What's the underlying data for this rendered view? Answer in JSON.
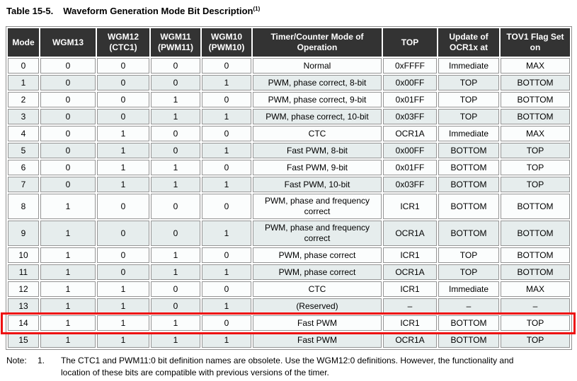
{
  "title": {
    "label": "Table 15-5.",
    "text": "Waveform Generation Mode Bit Description",
    "footnote_ref": "(1)"
  },
  "table": {
    "columns": [
      "Mode",
      "WGM13",
      "WGM12 (CTC1)",
      "WGM11 (PWM11)",
      "WGM10 (PWM10)",
      "Timer/Counter Mode of Operation",
      "TOP",
      "Update of OCR1x at",
      "TOV1 Flag Set on"
    ],
    "rows": [
      {
        "cells": [
          "0",
          "0",
          "0",
          "0",
          "0",
          "Normal",
          "0xFFFF",
          "Immediate",
          "MAX"
        ]
      },
      {
        "cells": [
          "1",
          "0",
          "0",
          "0",
          "1",
          "PWM, phase correct, 8-bit",
          "0x00FF",
          "TOP",
          "BOTTOM"
        ]
      },
      {
        "cells": [
          "2",
          "0",
          "0",
          "1",
          "0",
          "PWM, phase correct, 9-bit",
          "0x01FF",
          "TOP",
          "BOTTOM"
        ]
      },
      {
        "cells": [
          "3",
          "0",
          "0",
          "1",
          "1",
          "PWM, phase correct, 10-bit",
          "0x03FF",
          "TOP",
          "BOTTOM"
        ]
      },
      {
        "cells": [
          "4",
          "0",
          "1",
          "0",
          "0",
          "CTC",
          "OCR1A",
          "Immediate",
          "MAX"
        ]
      },
      {
        "cells": [
          "5",
          "0",
          "1",
          "0",
          "1",
          "Fast PWM, 8-bit",
          "0x00FF",
          "BOTTOM",
          "TOP"
        ]
      },
      {
        "cells": [
          "6",
          "0",
          "1",
          "1",
          "0",
          "Fast PWM, 9-bit",
          "0x01FF",
          "BOTTOM",
          "TOP"
        ]
      },
      {
        "cells": [
          "7",
          "0",
          "1",
          "1",
          "1",
          "Fast PWM, 10-bit",
          "0x03FF",
          "BOTTOM",
          "TOP"
        ]
      },
      {
        "cells": [
          "8",
          "1",
          "0",
          "0",
          "0",
          "PWM, phase and frequency correct",
          "ICR1",
          "BOTTOM",
          "BOTTOM"
        ]
      },
      {
        "cells": [
          "9",
          "1",
          "0",
          "0",
          "1",
          "PWM, phase and frequency correct",
          "OCR1A",
          "BOTTOM",
          "BOTTOM"
        ]
      },
      {
        "cells": [
          "10",
          "1",
          "0",
          "1",
          "0",
          "PWM, phase correct",
          "ICR1",
          "TOP",
          "BOTTOM"
        ]
      },
      {
        "cells": [
          "11",
          "1",
          "0",
          "1",
          "1",
          "PWM, phase correct",
          "OCR1A",
          "TOP",
          "BOTTOM"
        ]
      },
      {
        "cells": [
          "12",
          "1",
          "1",
          "0",
          "0",
          "CTC",
          "ICR1",
          "Immediate",
          "MAX"
        ]
      },
      {
        "cells": [
          "13",
          "1",
          "1",
          "0",
          "1",
          "(Reserved)",
          "–",
          "–",
          "–"
        ]
      },
      {
        "cells": [
          "14",
          "1",
          "1",
          "1",
          "0",
          "Fast PWM",
          "ICR1",
          "BOTTOM",
          "TOP"
        ],
        "highlighted": true
      },
      {
        "cells": [
          "15",
          "1",
          "1",
          "1",
          "1",
          "Fast PWM",
          "OCR1A",
          "BOTTOM",
          "TOP"
        ]
      }
    ]
  },
  "note": {
    "label": "Note:",
    "number": "1.",
    "text": "The CTC1 and PWM11:0 bit definition names are obsolete. Use the WGM12:0 definitions. However, the functionality and location of these bits are compatible with previous versions of the timer."
  },
  "colors": {
    "header_bg": "#333333",
    "header_text": "#ffffff",
    "row_even": "#fbfdfd",
    "row_odd": "#e6eded",
    "cell_border": "#949494",
    "highlight_red": "#ee1111"
  }
}
